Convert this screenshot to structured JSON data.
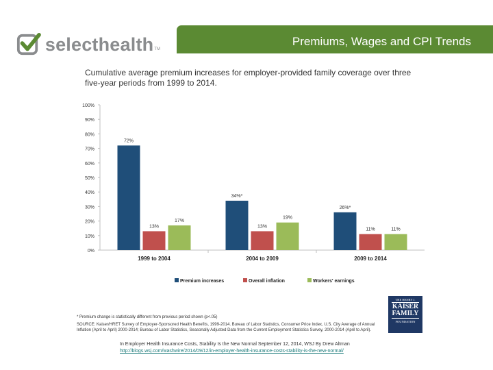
{
  "logo": {
    "text": "selecthealth",
    "tm": "TM"
  },
  "header": {
    "title": "Premiums, Wages and CPI Trends"
  },
  "colors": {
    "premium": "#1f4e79",
    "inflation": "#c0504d",
    "earnings": "#9bbb59",
    "header": "#5b8a33"
  },
  "chart_data": {
    "type": "bar",
    "title": "Cumulative average premium increases for employer-provided family coverage over three five-year periods from 1999 to 2014.",
    "categories": [
      "1999 to 2004",
      "2004 to 2009",
      "2009 to 2014"
    ],
    "series": [
      {
        "name": "Premium increases",
        "values": [
          72,
          34,
          26
        ],
        "labels": [
          "72%",
          "34%*",
          "26%*"
        ]
      },
      {
        "name": "Overall inflation",
        "values": [
          13,
          13,
          11
        ],
        "labels": [
          "13%",
          "13%",
          "11%"
        ]
      },
      {
        "name": "Workers' earnings",
        "values": [
          17,
          19,
          11
        ],
        "labels": [
          "17%",
          "19%",
          "11%"
        ]
      }
    ],
    "yticks": [
      "0%",
      "10%",
      "20%",
      "30%",
      "40%",
      "50%",
      "60%",
      "70%",
      "80%",
      "90%",
      "100%"
    ],
    "ylim": [
      0,
      100
    ],
    "xlabel": "",
    "ylabel": "",
    "legend": "bottom"
  },
  "footnote": "* Premium change is statistically different from previous period shown (p<.05)",
  "source": "SOURCE: Kaiser/HRET Survey of Employer-Sponsored Health Benefits, 1999-2014. Bureau of Labor Statistics, Consumer Price Index, U.S. City Average of Annual Inflation (April to April) 2000-2014; Bureau of Labor Statistics, Seasonally Adjusted Data from the Current Employment Statistics Survey, 2000-2014 (April to April).",
  "citation": {
    "text": "In Employer Health Insurance Costs, Stability Is the New Normal September 12, 2014, WSJ By Drew Altman",
    "link": "http://blogs.wsj.com/washwire/2014/09/12/in-employer-health-insurance-costs-stability-is-the-new-normal/"
  },
  "kff": {
    "line1": "THE HENRY J.",
    "line2": "KAISER",
    "line3": "FAMILY",
    "line4": "FOUNDATION"
  }
}
